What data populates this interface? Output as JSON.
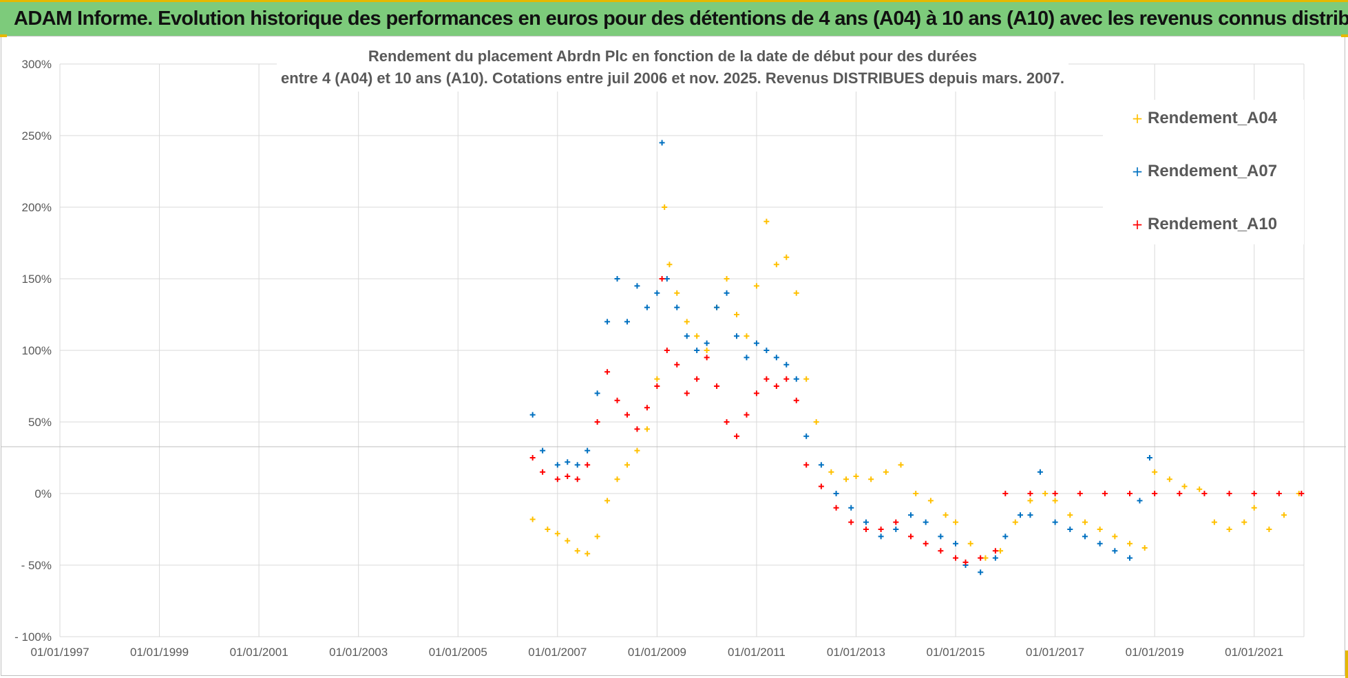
{
  "banner": {
    "title": "ADAM Informe. Evolution historique des performances en euros pour des détentions de 4 ans (A04) à 10 ans (A10) avec les revenus connus distribués"
  },
  "colors": {
    "banner_bg": "#7dcb7b",
    "a04": "#ffc000",
    "a07": "#0070c0",
    "a10": "#ff0000",
    "grid": "#d9d9d9"
  },
  "chart_data": {
    "type": "scatter",
    "title_line1": "Rendement du placement Abrdn Plc en fonction de la date de début pour des durées",
    "title_line2": "entre 4 (A04) et 10 ans (A10). Cotations entre juil 2006 et nov. 2025. Revenus DISTRIBUES depuis mars. 2007.",
    "x_axis": {
      "type": "date",
      "min": 1997.0,
      "max": 2022.0,
      "tick_values": [
        1997,
        1999,
        2001,
        2003,
        2005,
        2007,
        2009,
        2011,
        2013,
        2015,
        2017,
        2019,
        2021
      ],
      "tick_labels": [
        "01/01/1997",
        "01/01/1999",
        "01/01/2001",
        "01/01/2003",
        "01/01/2005",
        "01/01/2007",
        "01/01/2009",
        "01/01/2011",
        "01/01/2013",
        "01/01/2015",
        "01/01/2017",
        "01/01/2019",
        "01/01/2021"
      ]
    },
    "y_axis": {
      "min": -100,
      "max": 300,
      "tick_values": [
        300,
        250,
        200,
        150,
        100,
        50,
        0,
        -50,
        -100
      ],
      "tick_labels": [
        "300%",
        "250%",
        "200%",
        "150%",
        "100%",
        "50%",
        "0%",
        "- 50%",
        "- 100%"
      ]
    },
    "legend_position": "top-right",
    "series": [
      {
        "name": "Rendement_A04",
        "marker": "+",
        "x": [
          2006.5,
          2006.8,
          2007.0,
          2007.2,
          2007.4,
          2007.6,
          2007.8,
          2008.0,
          2008.2,
          2008.4,
          2008.6,
          2008.8,
          2009.0,
          2009.15,
          2009.25,
          2009.4,
          2009.6,
          2009.8,
          2010.0,
          2010.2,
          2010.4,
          2010.6,
          2010.8,
          2011.0,
          2011.2,
          2011.4,
          2011.6,
          2011.8,
          2012.0,
          2012.2,
          2012.5,
          2012.8,
          2013.0,
          2013.3,
          2013.6,
          2013.9,
          2014.2,
          2014.5,
          2014.8,
          2015.0,
          2015.3,
          2015.6,
          2015.9,
          2016.2,
          2016.5,
          2016.8,
          2017.0,
          2017.3,
          2017.6,
          2017.9,
          2018.2,
          2018.5,
          2018.8,
          2019.0,
          2019.3,
          2019.6,
          2019.9,
          2020.2,
          2020.5,
          2020.8,
          2021.0,
          2021.3,
          2021.6,
          2021.9
        ],
        "y": [
          -18,
          -25,
          -28,
          -33,
          -40,
          -42,
          -30,
          -5,
          10,
          20,
          30,
          45,
          80,
          200,
          160,
          140,
          120,
          110,
          100,
          130,
          150,
          125,
          110,
          145,
          190,
          160,
          165,
          140,
          80,
          50,
          15,
          10,
          12,
          10,
          15,
          20,
          0,
          -5,
          -15,
          -20,
          -35,
          -45,
          -40,
          -20,
          -5,
          0,
          -5,
          -15,
          -20,
          -25,
          -30,
          -35,
          -38,
          15,
          10,
          5,
          3,
          -20,
          -25,
          -20,
          -10,
          -25,
          -15,
          0
        ]
      },
      {
        "name": "Rendement_A07",
        "marker": "+",
        "x": [
          2006.5,
          2006.7,
          2007.0,
          2007.2,
          2007.4,
          2007.6,
          2007.8,
          2008.0,
          2008.2,
          2008.4,
          2008.6,
          2008.8,
          2009.0,
          2009.1,
          2009.2,
          2009.4,
          2009.6,
          2009.8,
          2010.0,
          2010.2,
          2010.4,
          2010.6,
          2010.8,
          2011.0,
          2011.2,
          2011.4,
          2011.6,
          2011.8,
          2012.0,
          2012.3,
          2012.6,
          2012.9,
          2013.2,
          2013.5,
          2013.8,
          2014.1,
          2014.4,
          2014.7,
          2015.0,
          2015.2,
          2015.5,
          2015.8,
          2016.0,
          2016.3,
          2016.5,
          2016.7,
          2017.0,
          2017.3,
          2017.6,
          2017.9,
          2018.2,
          2018.5,
          2018.7,
          2018.9
        ],
        "y": [
          55,
          30,
          20,
          22,
          20,
          30,
          70,
          120,
          150,
          120,
          145,
          130,
          140,
          245,
          150,
          130,
          110,
          100,
          105,
          130,
          140,
          110,
          95,
          105,
          100,
          95,
          90,
          80,
          40,
          20,
          0,
          -10,
          -20,
          -30,
          -25,
          -15,
          -20,
          -30,
          -35,
          -50,
          -55,
          -45,
          -30,
          -15,
          -15,
          15,
          -20,
          -25,
          -30,
          -35,
          -40,
          -45,
          -5,
          25
        ]
      },
      {
        "name": "Rendement_A10",
        "marker": "+",
        "x": [
          2006.5,
          2006.7,
          2007.0,
          2007.2,
          2007.4,
          2007.6,
          2007.8,
          2008.0,
          2008.2,
          2008.4,
          2008.6,
          2008.8,
          2009.0,
          2009.1,
          2009.2,
          2009.4,
          2009.6,
          2009.8,
          2010.0,
          2010.2,
          2010.4,
          2010.6,
          2010.8,
          2011.0,
          2011.2,
          2011.4,
          2011.6,
          2011.8,
          2012.0,
          2012.3,
          2012.6,
          2012.9,
          2013.2,
          2013.5,
          2013.8,
          2014.1,
          2014.4,
          2014.7,
          2015.0,
          2015.2,
          2015.5,
          2015.8,
          2016.0,
          2016.5,
          2017.0,
          2017.5,
          2018.0,
          2018.5,
          2019.0,
          2019.5,
          2020.0,
          2020.5,
          2021.0,
          2021.5,
          2021.95
        ],
        "y": [
          25,
          15,
          10,
          12,
          10,
          20,
          50,
          85,
          65,
          55,
          45,
          60,
          75,
          150,
          100,
          90,
          70,
          80,
          95,
          75,
          50,
          40,
          55,
          70,
          80,
          75,
          80,
          65,
          20,
          5,
          -10,
          -20,
          -25,
          -25,
          -20,
          -30,
          -35,
          -40,
          -45,
          -48,
          -45,
          -40,
          0,
          0,
          0,
          0,
          0,
          0,
          0,
          0,
          0,
          0,
          0,
          0,
          0
        ]
      }
    ]
  }
}
